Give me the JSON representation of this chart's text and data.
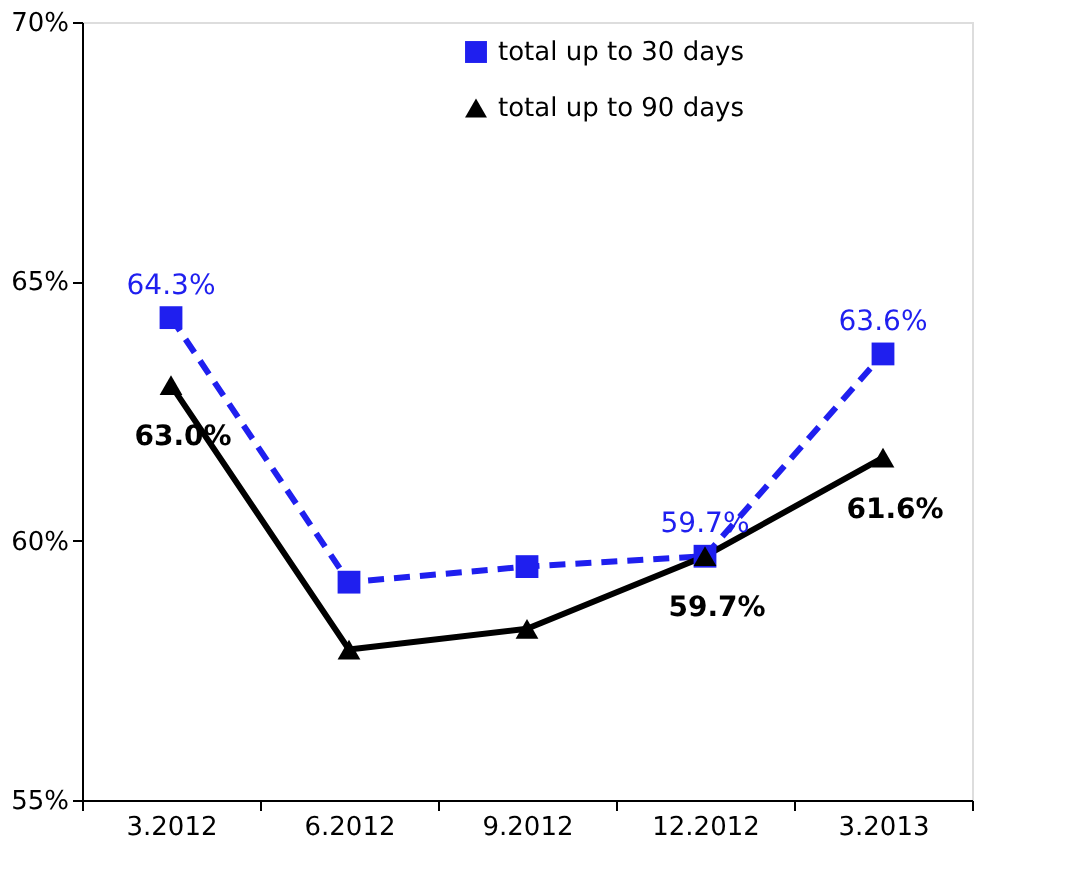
{
  "chart_data": {
    "type": "line",
    "categories": [
      "3.2012",
      "6.2012",
      "9.2012",
      "12.2012",
      "3.2013"
    ],
    "series": [
      {
        "name": "total up to 30 days",
        "color": "#1f1fef",
        "marker": "square",
        "line_style": "dashed",
        "values": [
          64.3,
          59.2,
          59.5,
          59.7,
          63.6
        ],
        "value_labels": [
          "64.3%",
          null,
          null,
          "59.7%",
          "63.6%"
        ]
      },
      {
        "name": "total up to 90 days",
        "color": "#000000",
        "marker": "triangle",
        "line_style": "solid",
        "values": [
          63.0,
          57.9,
          58.3,
          59.7,
          61.6
        ],
        "value_labels": [
          "63.0%",
          null,
          null,
          "59.7%",
          "61.6%"
        ]
      }
    ],
    "ylim": [
      55,
      70
    ],
    "yticks": [
      {
        "value": 55,
        "label": "55%"
      },
      {
        "value": 60,
        "label": "60%"
      },
      {
        "value": 65,
        "label": "65%"
      },
      {
        "value": 70,
        "label": "70%"
      }
    ],
    "grid": false,
    "legend": "top"
  }
}
